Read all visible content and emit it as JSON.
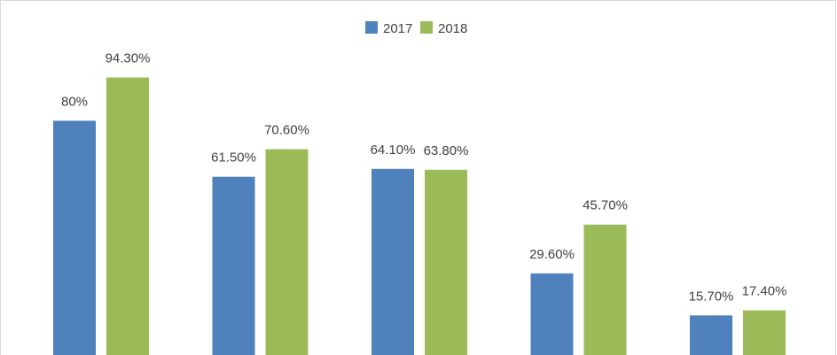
{
  "chart_data": {
    "type": "bar",
    "title": "",
    "xlabel": "",
    "ylabel": "",
    "categories": [
      "",
      "",
      "",
      "",
      ""
    ],
    "series": [
      {
        "name": "2017",
        "color": "#4f81bd",
        "values": [
          80,
          61.5,
          64.1,
          29.6,
          15.7
        ],
        "labels": [
          "80%",
          "61.50%",
          "64.10%",
          "29.60%",
          "15.70%"
        ]
      },
      {
        "name": "2018",
        "color": "#9bbb59",
        "values": [
          94.3,
          70.6,
          63.8,
          45.7,
          17.4
        ],
        "labels": [
          "94.30%",
          "70.60%",
          "63.80%",
          "45.70%",
          "17.40%"
        ]
      }
    ],
    "ylim": [
      0,
      100
    ],
    "grid": false,
    "legend_position": "top-center",
    "data_labels": true
  }
}
